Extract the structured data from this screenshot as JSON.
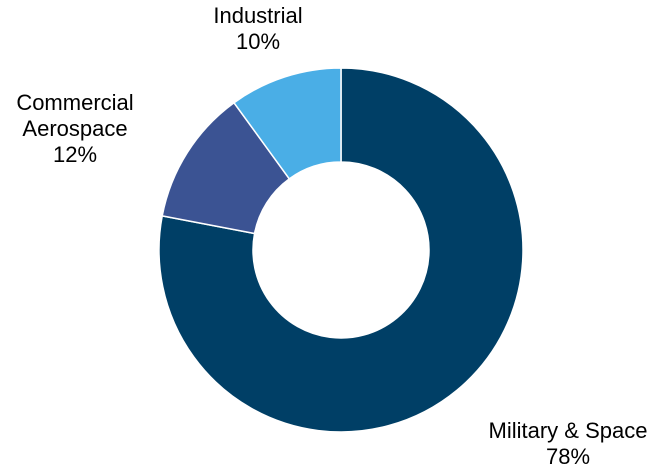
{
  "chart_data": {
    "type": "pie",
    "subtype": "donut",
    "categories": [
      "Military & Space",
      "Commercial Aerospace",
      "Industrial"
    ],
    "values": [
      78,
      12,
      10
    ],
    "value_labels": [
      "78%",
      "12%",
      "10%"
    ],
    "label_lines": [
      [
        "Military & Space",
        "78%"
      ],
      [
        "Commercial",
        "Aerospace",
        "12%"
      ],
      [
        "Industrial",
        "10%"
      ]
    ],
    "colors": [
      "#003F66",
      "#3B5393",
      "#4AAEE6"
    ],
    "legend": false
  }
}
